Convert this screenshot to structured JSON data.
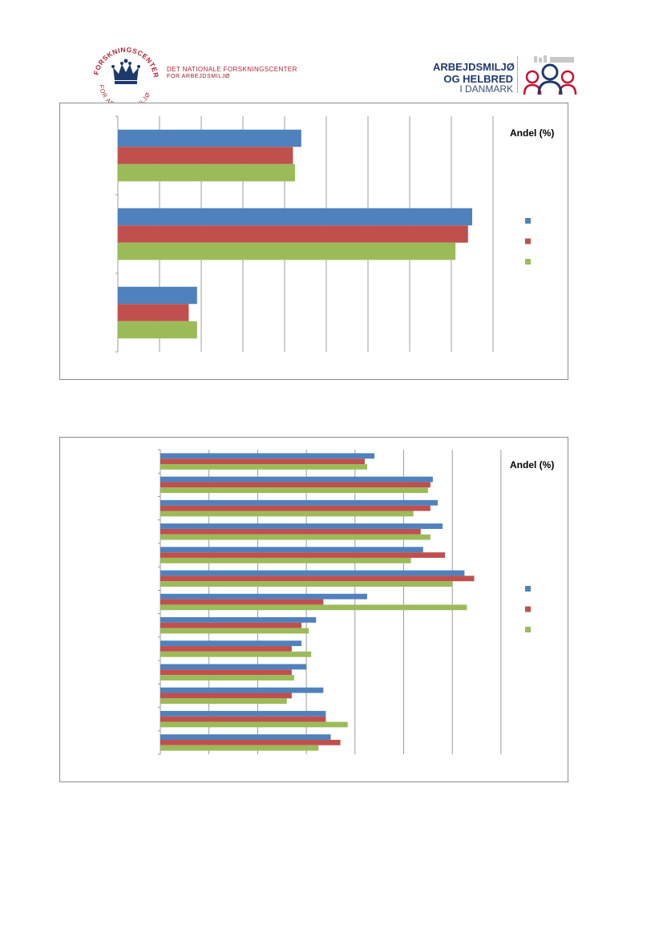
{
  "header": {
    "left_logo": {
      "seal_text": "FORSKNINGSCENTER FOR ARBEJDSMILJØ",
      "name": "DET NATIONALE FORSKNINGSCENTER",
      "subname": "FOR ARBEJDSMILJØ"
    },
    "right_logo": {
      "line1": "ARBEJDSMILJØ",
      "line2": "OG HELBRED",
      "line3": "I DANMARK"
    }
  },
  "colors": {
    "series1": "#4f81bd",
    "series2": "#c0504d",
    "series3": "#9bbb59",
    "grid": "#868686"
  },
  "chart_data": [
    {
      "type": "bar",
      "orientation": "horizontal",
      "title": "Andel (%)",
      "categories": [
        "",
        "",
        ""
      ],
      "series": [
        {
          "values": [
            44,
            85,
            19
          ]
        },
        {
          "values": [
            42,
            84,
            17
          ]
        },
        {
          "values": [
            42.5,
            81,
            19
          ]
        }
      ],
      "xlim": [
        0,
        90
      ],
      "grid": true,
      "legend": "right"
    },
    {
      "type": "bar",
      "orientation": "horizontal",
      "title": "Andel (%)",
      "categories": [
        "",
        "",
        "",
        "",
        "",
        "",
        "",
        "",
        "",
        "",
        "",
        "",
        ""
      ],
      "series": [
        {
          "values": [
            44,
            56,
            57,
            58,
            54,
            62.5,
            42.5,
            32,
            29,
            30,
            33.5,
            34,
            35
          ]
        },
        {
          "values": [
            42,
            55.5,
            55.5,
            53.5,
            58.5,
            64.5,
            33.5,
            29,
            27,
            27,
            27,
            34,
            37
          ]
        },
        {
          "values": [
            42.5,
            55,
            52,
            55.5,
            51.5,
            60,
            63,
            30.5,
            31,
            27.5,
            26,
            38.5,
            32.5
          ]
        }
      ],
      "xlim": [
        0,
        70
      ],
      "grid": true,
      "legend": "right"
    }
  ]
}
